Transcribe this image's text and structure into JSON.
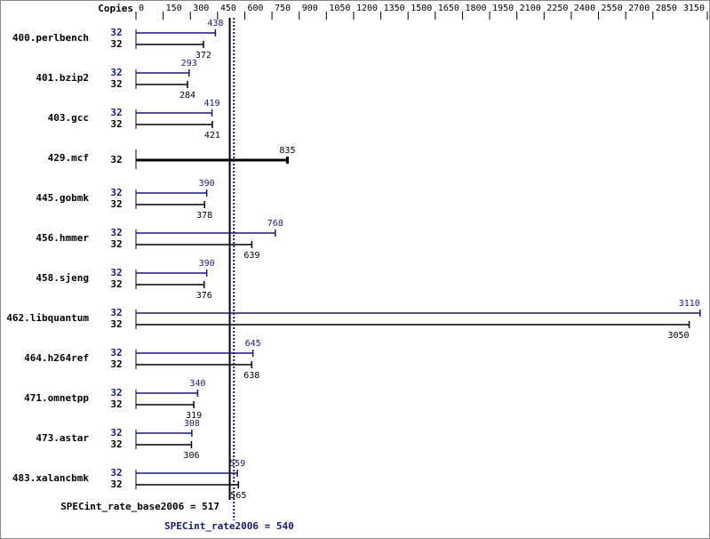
{
  "chart_data": {
    "type": "bar",
    "orientation": "horizontal",
    "x_axis_label": "Copies",
    "categories": [
      "400.perlbench",
      "401.bzip2",
      "403.gcc",
      "429.mcf",
      "445.gobmk",
      "456.hmmer",
      "458.sjeng",
      "462.libquantum",
      "464.h264ref",
      "471.omnetpp",
      "473.astar",
      "483.xalancbmk"
    ],
    "series": [
      {
        "color": "#191970",
        "copies": [
          32,
          32,
          32,
          null,
          32,
          32,
          32,
          32,
          32,
          32,
          32,
          32
        ],
        "values": [
          438,
          293,
          419,
          null,
          390,
          768,
          390,
          3110,
          645,
          340,
          308,
          559
        ]
      },
      {
        "color": "#000000",
        "copies": [
          32,
          32,
          32,
          32,
          32,
          32,
          32,
          32,
          32,
          32,
          32,
          32
        ],
        "values": [
          372,
          284,
          421,
          835,
          378,
          639,
          376,
          3050,
          638,
          319,
          306,
          565
        ]
      }
    ],
    "xlim": [
      0,
      3150
    ],
    "xticks": [
      0,
      150,
      300,
      450,
      600,
      750,
      900,
      1050,
      1200,
      1350,
      1500,
      1650,
      1800,
      1950,
      2100,
      2250,
      2400,
      2550,
      2700,
      2850,
      3150
    ],
    "reference_lines": [
      {
        "label": "SPECint_rate_base2006 = 517",
        "value": 517,
        "color": "#000000",
        "style": "solid"
      },
      {
        "label": "SPECint_rate2006 = 540",
        "value": 540,
        "color": "#191970",
        "style": "dotted"
      }
    ]
  }
}
